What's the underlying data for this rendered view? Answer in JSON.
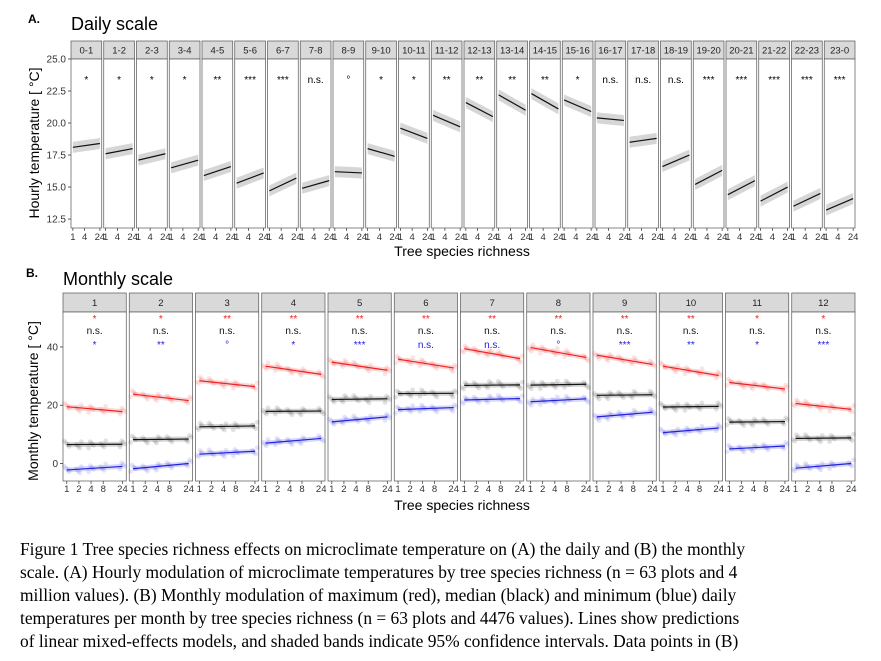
{
  "panel_a": {
    "letter": "A.",
    "title": "Daily scale",
    "ylabel": "Hourly temperature [ °C]",
    "xlabel": "Tree species richness",
    "ytick_labels": [
      "25.0",
      "22.5",
      "20.0",
      "17.5",
      "15.0",
      "12.5"
    ],
    "ylim": [
      11.8,
      25.0
    ],
    "xtick_labels": [
      "1",
      "4",
      "24"
    ]
  },
  "panel_b": {
    "letter": "B.",
    "title": "Monthly scale",
    "ylabel": "Monthly temperature [ °C]",
    "xlabel": "Tree species richness",
    "ytick_labels": [
      "40",
      "20",
      "0"
    ],
    "ylim": [
      -6,
      52
    ],
    "xtick_labels": [
      "1",
      "2",
      "4",
      "8",
      "24"
    ]
  },
  "chart_data": [
    {
      "type": "line",
      "panel": "A. Daily scale",
      "xlabel": "Tree species richness",
      "ylabel": "Hourly temperature [ °C]",
      "x_scale": "log",
      "x": [
        1,
        24
      ],
      "ylim": [
        11.8,
        25.0
      ],
      "facets": [
        {
          "label": "0-1",
          "sig": "*",
          "y": [
            18.1,
            18.4
          ]
        },
        {
          "label": "1-2",
          "sig": "*",
          "y": [
            17.6,
            18.0
          ]
        },
        {
          "label": "2-3",
          "sig": "*",
          "y": [
            17.1,
            17.6
          ]
        },
        {
          "label": "3-4",
          "sig": "*",
          "y": [
            16.5,
            17.1
          ]
        },
        {
          "label": "4-5",
          "sig": "**",
          "y": [
            15.9,
            16.6
          ]
        },
        {
          "label": "5-6",
          "sig": "***",
          "y": [
            15.3,
            16.1
          ]
        },
        {
          "label": "6-7",
          "sig": "***",
          "y": [
            14.7,
            15.7
          ]
        },
        {
          "label": "7-8",
          "sig": "n.s.",
          "y": [
            14.9,
            15.5
          ]
        },
        {
          "label": "8-9",
          "sig": "°",
          "y": [
            16.2,
            16.1
          ]
        },
        {
          "label": "9-10",
          "sig": "*",
          "y": [
            18.0,
            17.4
          ]
        },
        {
          "label": "10-11",
          "sig": "*",
          "y": [
            19.6,
            18.8
          ]
        },
        {
          "label": "11-12",
          "sig": "**",
          "y": [
            20.6,
            19.7
          ]
        },
        {
          "label": "12-13",
          "sig": "**",
          "y": [
            21.6,
            20.5
          ]
        },
        {
          "label": "13-14",
          "sig": "**",
          "y": [
            22.2,
            21.0
          ]
        },
        {
          "label": "14-15",
          "sig": "**",
          "y": [
            22.3,
            21.1
          ]
        },
        {
          "label": "15-16",
          "sig": "*",
          "y": [
            21.8,
            20.9
          ]
        },
        {
          "label": "16-17",
          "sig": "n.s.",
          "y": [
            20.4,
            20.2
          ]
        },
        {
          "label": "17-18",
          "sig": "n.s.",
          "y": [
            18.5,
            18.8
          ]
        },
        {
          "label": "18-19",
          "sig": "n.s.",
          "y": [
            16.6,
            17.5
          ]
        },
        {
          "label": "19-20",
          "sig": "***",
          "y": [
            15.2,
            16.3
          ]
        },
        {
          "label": "20-21",
          "sig": "***",
          "y": [
            14.4,
            15.5
          ]
        },
        {
          "label": "21-22",
          "sig": "***",
          "y": [
            13.9,
            15.0
          ]
        },
        {
          "label": "22-23",
          "sig": "***",
          "y": [
            13.5,
            14.5
          ]
        },
        {
          "label": "23-0",
          "sig": "***",
          "y": [
            13.2,
            14.1
          ]
        }
      ]
    },
    {
      "type": "line",
      "panel": "B. Monthly scale",
      "xlabel": "Tree species richness",
      "ylabel": "Monthly temperature [ °C]",
      "x_scale": "log",
      "x": [
        1,
        24
      ],
      "ylim": [
        -6,
        52
      ],
      "series_colors": {
        "max": "#ee2020",
        "median": "#111111",
        "min": "#2020dd"
      },
      "facets": [
        {
          "label": "1",
          "sig_max": "*",
          "sig_median": "n.s.",
          "sig_min": "*",
          "max": [
            19.5,
            17.8
          ],
          "median": [
            6.5,
            6.6
          ],
          "min": [
            -2.2,
            -1.0
          ]
        },
        {
          "label": "2",
          "sig_max": "*",
          "sig_median": "n.s.",
          "sig_min": "**",
          "max": [
            23.8,
            21.6
          ],
          "median": [
            8.2,
            8.4
          ],
          "min": [
            -1.8,
            0.0
          ]
        },
        {
          "label": "3",
          "sig_max": "**",
          "sig_median": "n.s.",
          "sig_min": "°",
          "max": [
            28.4,
            26.4
          ],
          "median": [
            12.6,
            12.9
          ],
          "min": [
            3.2,
            4.2
          ]
        },
        {
          "label": "4",
          "sig_max": "**",
          "sig_median": "n.s.",
          "sig_min": "*",
          "max": [
            33.4,
            30.6
          ],
          "median": [
            17.9,
            18.0
          ],
          "min": [
            7.0,
            8.6
          ]
        },
        {
          "label": "5",
          "sig_max": "**",
          "sig_median": "n.s.",
          "sig_min": "***",
          "max": [
            34.8,
            32.0
          ],
          "median": [
            22.0,
            22.2
          ],
          "min": [
            14.3,
            16.0
          ]
        },
        {
          "label": "6",
          "sig_max": "**",
          "sig_median": "n.s.",
          "sig_min": "n.s.",
          "max": [
            35.8,
            32.8
          ],
          "median": [
            24.0,
            24.1
          ],
          "min": [
            18.5,
            19.2
          ]
        },
        {
          "label": "7",
          "sig_max": "**",
          "sig_median": "n.s.",
          "sig_min": "n.s.",
          "max": [
            39.4,
            36.0
          ],
          "median": [
            26.8,
            27.0
          ],
          "min": [
            21.8,
            22.3
          ]
        },
        {
          "label": "8",
          "sig_max": "**",
          "sig_median": "n.s.",
          "sig_min": "°",
          "max": [
            39.8,
            36.4
          ],
          "median": [
            26.9,
            27.2
          ],
          "min": [
            21.2,
            22.2
          ]
        },
        {
          "label": "9",
          "sig_max": "**",
          "sig_median": "n.s.",
          "sig_min": "***",
          "max": [
            37.2,
            34.0
          ],
          "median": [
            23.4,
            23.6
          ],
          "min": [
            16.0,
            17.6
          ]
        },
        {
          "label": "10",
          "sig_max": "**",
          "sig_median": "n.s.",
          "sig_min": "**",
          "max": [
            33.4,
            30.2
          ],
          "median": [
            19.4,
            19.6
          ],
          "min": [
            10.6,
            12.2
          ]
        },
        {
          "label": "11",
          "sig_max": "*",
          "sig_median": "n.s.",
          "sig_min": "*",
          "max": [
            27.8,
            25.6
          ],
          "median": [
            14.2,
            14.4
          ],
          "min": [
            5.0,
            6.0
          ]
        },
        {
          "label": "12",
          "sig_max": "*",
          "sig_median": "n.s.",
          "sig_min": "***",
          "max": [
            20.6,
            18.6
          ],
          "median": [
            8.6,
            8.8
          ],
          "min": [
            -1.6,
            0.0
          ]
        }
      ]
    }
  ],
  "caption_lines": [
    "Figure 1 Tree species richness effects on microclimate temperature on (A) the daily and (B) the monthly",
    "scale. (A) Hourly modulation of microclimate temperatures by tree species richness (n = 63 plots and 4",
    "million values). (B) Monthly modulation of maximum (red), median (black) and minimum (blue) daily",
    "temperatures per month by tree species richness (n = 63 plots and 4476 values). Lines show predictions",
    "of linear mixed-effects models, and shaded bands indicate 95% confidence intervals. Data points in (B)"
  ]
}
